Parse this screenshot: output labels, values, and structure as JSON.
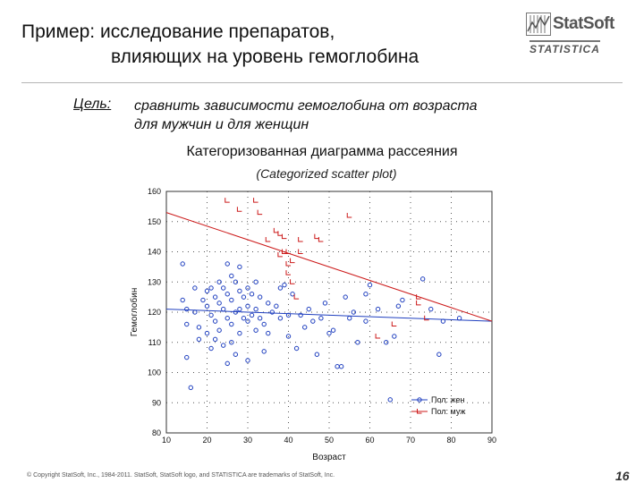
{
  "slide": {
    "title_line1": "Пример: исследование препаратов,",
    "title_line2": "влияющих на уровень гемоглобина",
    "goal_label": "Цель:",
    "goal_line1": "сравнить зависимости гемоглобина от возраста",
    "goal_line2": "для мужчин и для женщин",
    "chart_title": "Категоризованная диаграмма рассеяния",
    "chart_subtitle": "(Categorized scatter plot)",
    "footer": "© Copyright StatSoft, Inc., 1984-2011. StatSoft, StatSoft logo, and STATISTICA are trademarks of StatSoft, Inc.",
    "page_number": "16"
  },
  "logo": {
    "name": "StatSoft",
    "sub": "STATISTICA"
  },
  "colors": {
    "female": "#1f3fbf",
    "male": "#cc1a1a"
  },
  "chart_data": {
    "type": "scatter",
    "xlabel": "Возраст",
    "ylabel": "Гемоглобин",
    "xlim": [
      10,
      90
    ],
    "ylim": [
      80,
      160
    ],
    "xticks": [
      10,
      20,
      30,
      40,
      50,
      60,
      70,
      80,
      90
    ],
    "yticks": [
      80,
      90,
      100,
      110,
      120,
      130,
      140,
      150,
      160
    ],
    "grid": true,
    "legend_position": "bottom-right",
    "series": [
      {
        "name": "Пол: жен",
        "marker": "circle",
        "fit_line": [
          [
            10,
            121
          ],
          [
            90,
            117
          ]
        ],
        "points": [
          [
            14,
            136
          ],
          [
            14,
            124
          ],
          [
            15,
            121
          ],
          [
            15,
            116
          ],
          [
            15,
            105
          ],
          [
            16,
            95
          ],
          [
            17,
            128
          ],
          [
            17,
            120
          ],
          [
            18,
            115
          ],
          [
            18,
            111
          ],
          [
            19,
            124
          ],
          [
            20,
            127
          ],
          [
            20,
            122
          ],
          [
            20,
            113
          ],
          [
            21,
            128
          ],
          [
            21,
            119
          ],
          [
            21,
            108
          ],
          [
            22,
            125
          ],
          [
            22,
            117
          ],
          [
            22,
            111
          ],
          [
            23,
            130
          ],
          [
            23,
            123
          ],
          [
            23,
            114
          ],
          [
            24,
            128
          ],
          [
            24,
            121
          ],
          [
            24,
            109
          ],
          [
            25,
            136
          ],
          [
            25,
            126
          ],
          [
            25,
            118
          ],
          [
            25,
            103
          ],
          [
            26,
            132
          ],
          [
            26,
            124
          ],
          [
            26,
            116
          ],
          [
            26,
            110
          ],
          [
            27,
            130
          ],
          [
            27,
            120
          ],
          [
            27,
            106
          ],
          [
            28,
            135
          ],
          [
            28,
            127
          ],
          [
            28,
            121
          ],
          [
            28,
            113
          ],
          [
            29,
            125
          ],
          [
            29,
            118
          ],
          [
            30,
            128
          ],
          [
            30,
            122
          ],
          [
            30,
            117
          ],
          [
            30,
            104
          ],
          [
            31,
            126
          ],
          [
            31,
            119
          ],
          [
            32,
            130
          ],
          [
            32,
            121
          ],
          [
            32,
            114
          ],
          [
            33,
            125
          ],
          [
            33,
            118
          ],
          [
            34,
            116
          ],
          [
            34,
            107
          ],
          [
            35,
            123
          ],
          [
            35,
            113
          ],
          [
            36,
            120
          ],
          [
            37,
            122
          ],
          [
            38,
            128
          ],
          [
            38,
            118
          ],
          [
            39,
            129
          ],
          [
            40,
            119
          ],
          [
            40,
            112
          ],
          [
            41,
            126
          ],
          [
            42,
            108
          ],
          [
            43,
            119
          ],
          [
            44,
            115
          ],
          [
            45,
            121
          ],
          [
            46,
            117
          ],
          [
            47,
            106
          ],
          [
            48,
            118
          ],
          [
            49,
            123
          ],
          [
            50,
            113
          ],
          [
            51,
            114
          ],
          [
            52,
            102
          ],
          [
            53,
            102
          ],
          [
            54,
            125
          ],
          [
            55,
            118
          ],
          [
            56,
            120
          ],
          [
            57,
            110
          ],
          [
            59,
            126
          ],
          [
            59,
            117
          ],
          [
            60,
            129
          ],
          [
            62,
            121
          ],
          [
            64,
            110
          ],
          [
            65,
            91
          ],
          [
            66,
            112
          ],
          [
            67,
            122
          ],
          [
            68,
            124
          ],
          [
            73,
            131
          ],
          [
            75,
            121
          ],
          [
            77,
            106
          ],
          [
            78,
            117
          ],
          [
            82,
            118
          ]
        ]
      },
      {
        "name": "Пол: муж",
        "marker": "bracket",
        "fit_line": [
          [
            10,
            153
          ],
          [
            90,
            117
          ]
        ],
        "points": [
          [
            25,
            157
          ],
          [
            28,
            154
          ],
          [
            32,
            157
          ],
          [
            33,
            153
          ],
          [
            35,
            144
          ],
          [
            37,
            147
          ],
          [
            38,
            146
          ],
          [
            38,
            139
          ],
          [
            39,
            145
          ],
          [
            39,
            140
          ],
          [
            40,
            140
          ],
          [
            40,
            136
          ],
          [
            40,
            133
          ],
          [
            41,
            137
          ],
          [
            41,
            130
          ],
          [
            42,
            125
          ],
          [
            43,
            144
          ],
          [
            43,
            140
          ],
          [
            47,
            145
          ],
          [
            48,
            144
          ],
          [
            55,
            152
          ],
          [
            62,
            112
          ],
          [
            66,
            116
          ],
          [
            72,
            125
          ],
          [
            72,
            123
          ],
          [
            74,
            118
          ]
        ]
      }
    ]
  }
}
